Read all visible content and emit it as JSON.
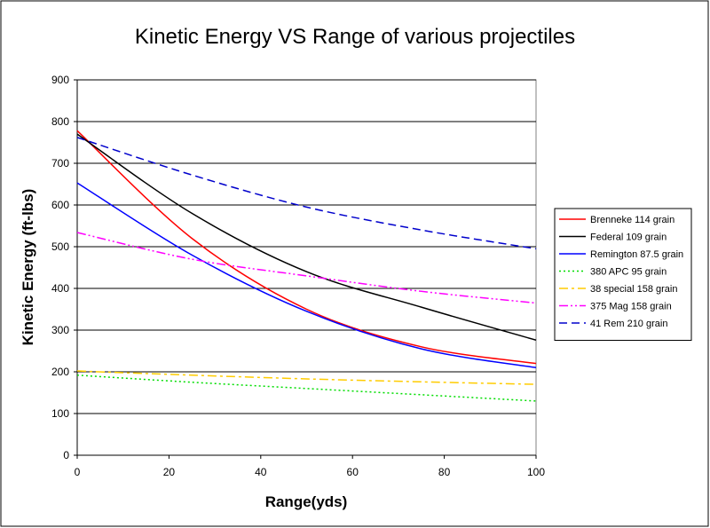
{
  "chart_data": {
    "type": "line",
    "title": "Kinetic Energy VS Range of various projectiles",
    "xlabel": "Range(yds)",
    "ylabel": "Kinetic Energy (ft-lbs)",
    "xlim": [
      0,
      100
    ],
    "ylim": [
      0,
      900
    ],
    "xticks": [
      0,
      20,
      40,
      60,
      80,
      100
    ],
    "yticks": [
      0,
      100,
      200,
      300,
      400,
      500,
      600,
      700,
      800,
      900
    ],
    "grid": "horizontal",
    "legend_position": "right",
    "x": [
      0,
      25,
      50,
      75,
      100
    ],
    "series": [
      {
        "name": "Brenneke 114 grain",
        "values": [
          778,
          520,
          350,
          260,
          220
        ],
        "color": "#ff0000",
        "dash": "solid"
      },
      {
        "name": "Federal 109 grain",
        "values": [
          770,
          580,
          440,
          355,
          276
        ],
        "color": "#000000",
        "dash": "solid"
      },
      {
        "name": "Remington 87.5 grain",
        "values": [
          653,
          480,
          345,
          255,
          210
        ],
        "color": "#0000ff",
        "dash": "solid"
      },
      {
        "name": "380 APC 95 grain",
        "values": [
          192,
          175,
          160,
          145,
          130
        ],
        "color": "#00dd00",
        "dash": "dot"
      },
      {
        "name": "38 special 158 grain",
        "values": [
          202,
          192,
          183,
          176,
          170
        ],
        "color": "#ffcc00",
        "dash": "dashdot"
      },
      {
        "name": "375 Mag 158 grain",
        "values": [
          534,
          470,
          430,
          393,
          365
        ],
        "color": "#ff00ff",
        "dash": "dashdotdot"
      },
      {
        "name": "41 Rem 210 grain",
        "values": [
          762,
          672,
          595,
          540,
          495
        ],
        "color": "#0000cc",
        "dash": "dash"
      }
    ]
  }
}
